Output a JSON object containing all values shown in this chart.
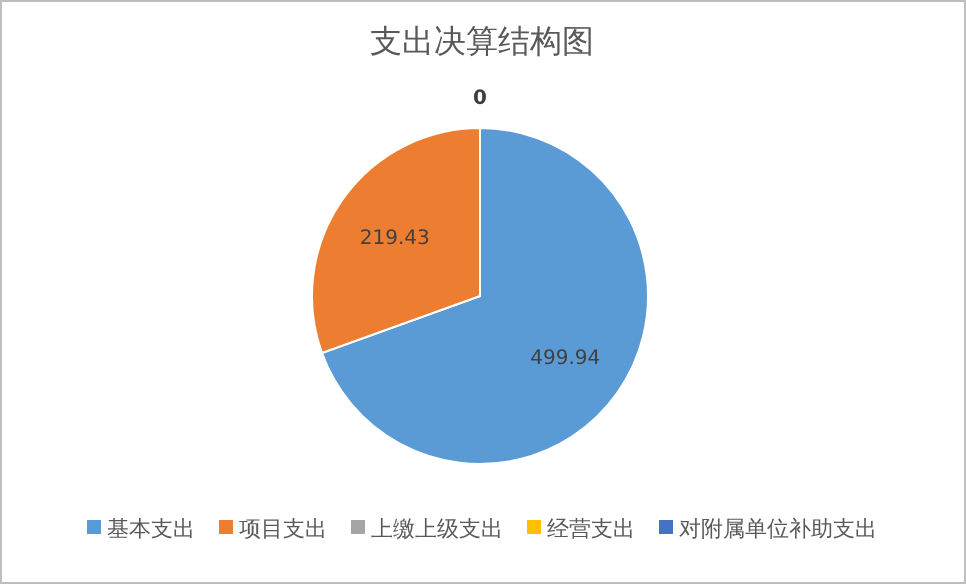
{
  "chart_data": {
    "type": "pie",
    "title": "支出决算结构图",
    "categories": [
      "基本支出",
      "项目支出",
      "上缴上级支出",
      "经营支出",
      "对附属单位补助支出"
    ],
    "values": [
      499.94,
      219.43,
      0,
      0,
      0
    ],
    "value_labels": [
      "499.94",
      "219.43",
      "0",
      null,
      null
    ],
    "colors": [
      "#5b9bd5",
      "#ed7d31",
      "#a5a5a5",
      "#ffc000",
      "#4472c4"
    ],
    "legend": "bottom"
  }
}
